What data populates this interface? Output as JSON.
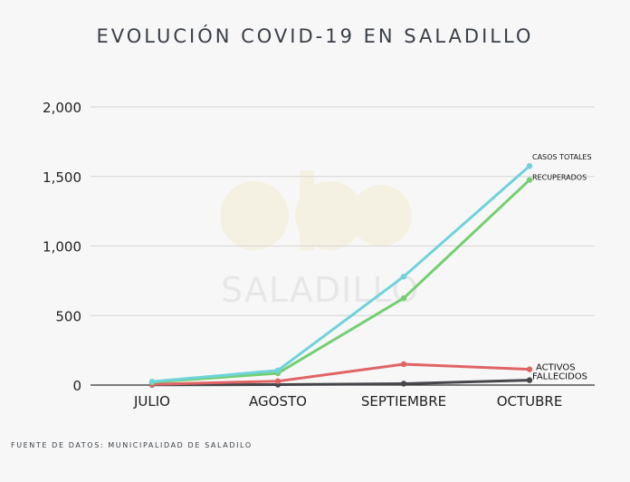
{
  "title": "EVOLUCIÓN COVID-19 EN SALADILLO",
  "source": "FUENTE DE DATOS: MUNICIPALIDAD DE SALADILO",
  "watermark": {
    "logo": "abc",
    "text": "SALADILLO"
  },
  "chart_data": {
    "type": "line",
    "categories": [
      "JULIO",
      "AGOSTO",
      "SEPTIEMBRE",
      "OCTUBRE"
    ],
    "ylim": [
      0,
      2000
    ],
    "yticks": [
      "0",
      "500",
      "1,000",
      "1,500",
      "2,000"
    ],
    "ytick_values": [
      0,
      500,
      1000,
      1500,
      2000
    ],
    "grid": true,
    "series": [
      {
        "name": "CASOS TOTALES",
        "color": "#6fd3dc",
        "values": [
          25,
          105,
          780,
          1575
        ]
      },
      {
        "name": "RECUPERADOS",
        "color": "#74cf72",
        "values": [
          20,
          85,
          625,
          1475
        ]
      },
      {
        "name": "ACTIVOS",
        "color": "#e06466",
        "values": [
          5,
          28,
          150,
          113
        ]
      },
      {
        "name": "FALLECIDOS",
        "color": "#45474b",
        "values": [
          2,
          3,
          10,
          35
        ]
      }
    ]
  }
}
